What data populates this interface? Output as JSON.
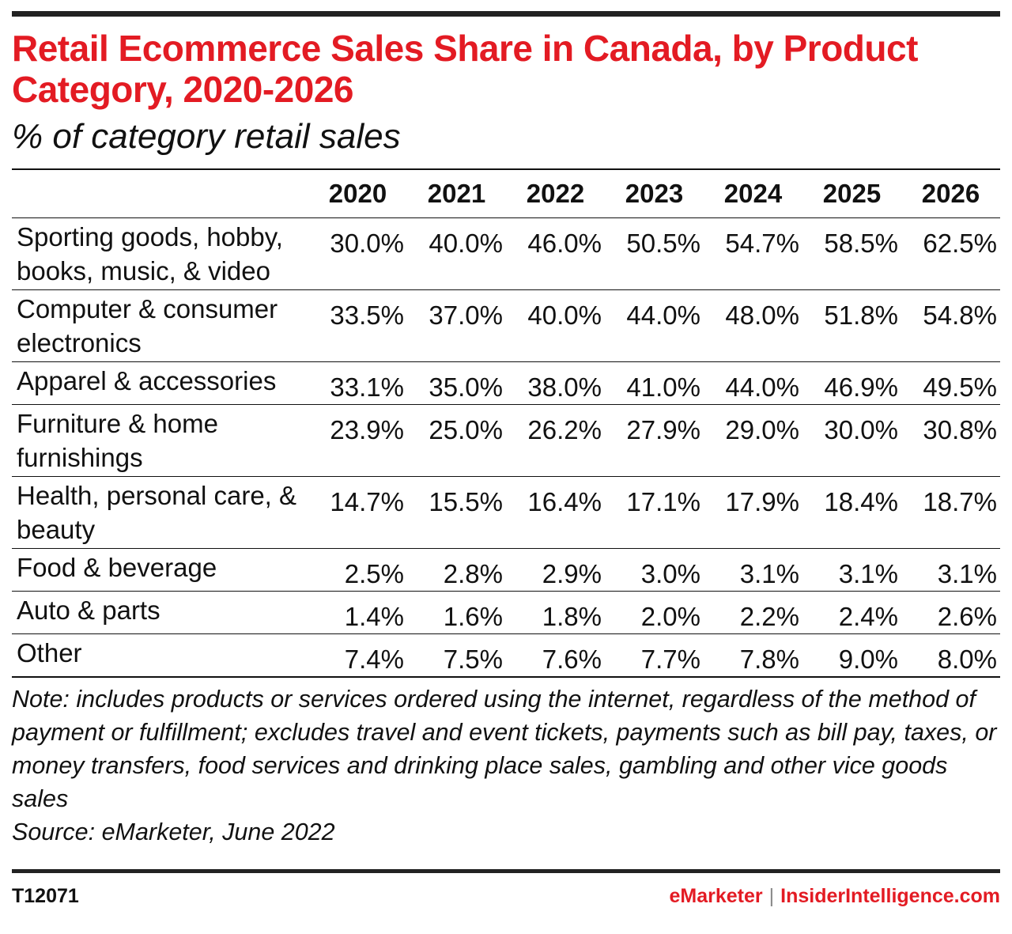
{
  "title": "Retail Ecommerce Sales Share in Canada, by Product Category, 2020-2026",
  "subtitle": "% of category retail sales",
  "chart_data": {
    "type": "table",
    "title": "Retail Ecommerce Sales Share in Canada, by Product Category, 2020-2026",
    "subtitle": "% of category retail sales",
    "columns": [
      "2020",
      "2021",
      "2022",
      "2023",
      "2024",
      "2025",
      "2026"
    ],
    "rows": [
      {
        "category": "Sporting goods, hobby, books, music, & video",
        "values": [
          "30.0%",
          "40.0%",
          "46.0%",
          "50.5%",
          "54.7%",
          "58.5%",
          "62.5%"
        ]
      },
      {
        "category": "Computer & consumer electronics",
        "values": [
          "33.5%",
          "37.0%",
          "40.0%",
          "44.0%",
          "48.0%",
          "51.8%",
          "54.8%"
        ]
      },
      {
        "category": "Apparel & accessories",
        "values": [
          "33.1%",
          "35.0%",
          "38.0%",
          "41.0%",
          "44.0%",
          "46.9%",
          "49.5%"
        ]
      },
      {
        "category": "Furniture & home furnishings",
        "values": [
          "23.9%",
          "25.0%",
          "26.2%",
          "27.9%",
          "29.0%",
          "30.0%",
          "30.8%"
        ]
      },
      {
        "category": "Health, personal care, & beauty",
        "values": [
          "14.7%",
          "15.5%",
          "16.4%",
          "17.1%",
          "17.9%",
          "18.4%",
          "18.7%"
        ]
      },
      {
        "category": "Food & beverage",
        "values": [
          "2.5%",
          "2.8%",
          "2.9%",
          "3.0%",
          "3.1%",
          "3.1%",
          "3.1%"
        ]
      },
      {
        "category": "Auto & parts",
        "values": [
          "1.4%",
          "1.6%",
          "1.8%",
          "2.0%",
          "2.2%",
          "2.4%",
          "2.6%"
        ]
      },
      {
        "category": "Other",
        "values": [
          "7.4%",
          "7.5%",
          "7.6%",
          "7.7%",
          "7.8%",
          "9.0%",
          "8.0%"
        ]
      }
    ]
  },
  "note": "Note: includes products or services ordered using the internet, regardless of the method of payment or fulfillment; excludes travel and event tickets, payments such as bill pay, taxes, or money transfers, food services and drinking place sales, gambling and other vice goods sales",
  "source": "Source: eMarketer, June 2022",
  "footer": {
    "chart_id": "T12071",
    "brand_left": "eMarketer",
    "separator": "|",
    "brand_right": "InsiderIntelligence.com"
  },
  "colors": {
    "accent": "#e31b23",
    "rules": "#111111"
  }
}
